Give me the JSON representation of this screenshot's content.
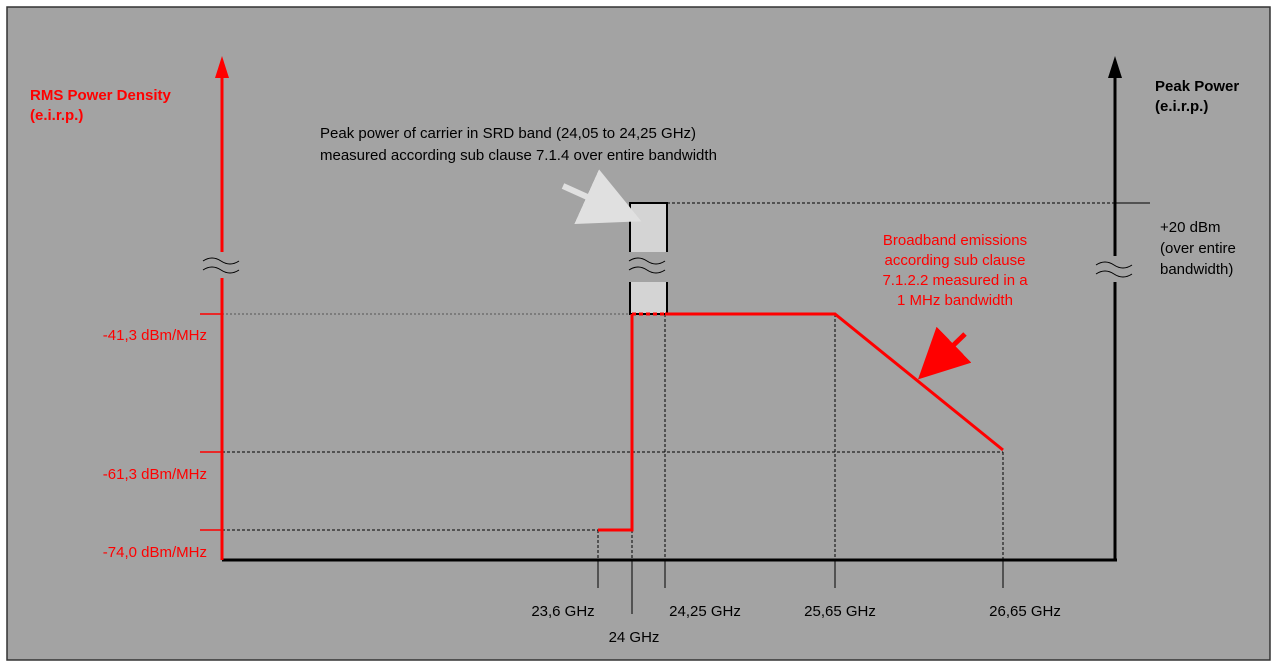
{
  "left_axis": {
    "title": [
      "RMS Power Density",
      "(e.i.r.p.)"
    ],
    "levels": [
      "-41,3 dBm/MHz",
      "-61,3 dBm/MHz",
      "-74,0 dBm/MHz"
    ]
  },
  "right_axis": {
    "title": [
      "Peak Power",
      "(e.i.r.p.)"
    ],
    "level": [
      "+20 dBm",
      "(over entire",
      "bandwidth)"
    ]
  },
  "carrier_note": [
    "Peak power of carrier in SRD band (24,05 to 24,25 GHz)",
    "measured according sub clause 7.1.4 over entire bandwidth"
  ],
  "broadband_note": [
    "Broadband emissions",
    "according sub clause",
    "7.1.2.2 measured in a",
    "1 MHz bandwidth"
  ],
  "frequencies": [
    "23,6 GHz",
    "24 GHz",
    "24,25 GHz",
    "25,65 GHz",
    "26,65 GHz"
  ]
}
